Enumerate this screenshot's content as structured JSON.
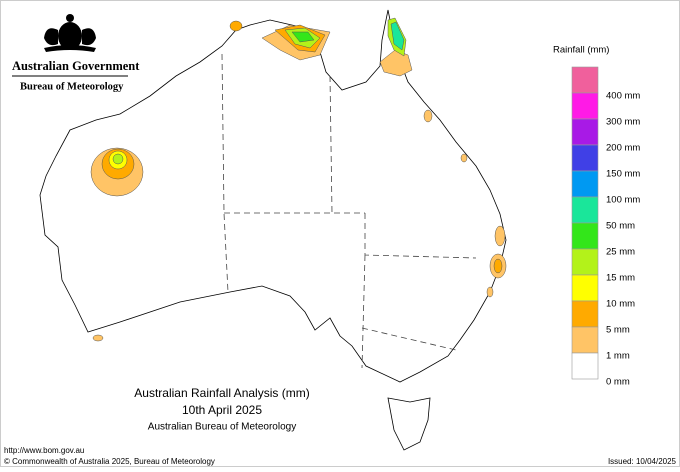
{
  "header": {
    "government": "Australian Government",
    "agency": "Bureau of Meteorology"
  },
  "map": {
    "title": "Australian Rainfall Analysis (mm)",
    "date": "10th April 2025",
    "credit": "Australian Bureau of Meteorology"
  },
  "legend": {
    "title": "Rainfall (mm)",
    "colors": [
      "#f0609c",
      "#ff1ae6",
      "#a81ae6",
      "#4040e6",
      "#0099f2",
      "#1ae69a",
      "#33e61a",
      "#b3f21a",
      "#ffff00",
      "#ffaa00",
      "#ffc466",
      "#ffffff"
    ],
    "labels": [
      "400 mm",
      "300 mm",
      "200 mm",
      "150 mm",
      "100 mm",
      "50 mm",
      "25 mm",
      "15 mm",
      "10 mm",
      "5 mm",
      "1 mm",
      "0 mm"
    ]
  },
  "footer": {
    "url": "http://www.bom.gov.au",
    "copyright": "© Commonwealth of Australia 2025, Bureau of Meteorology",
    "issued": "Issued: 10/04/2025"
  }
}
